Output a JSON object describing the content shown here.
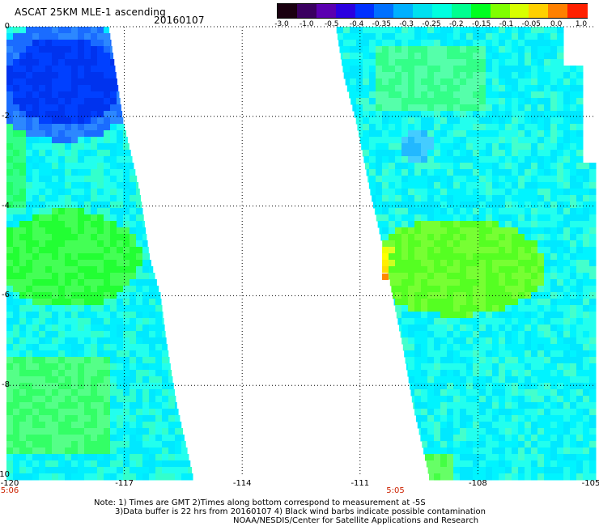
{
  "header": {
    "title": "ASCAT 25KM MLE-1 ascending",
    "date": "20160107"
  },
  "colorbar": {
    "colors": [
      "#1a0010",
      "#3a0060",
      "#5a00b0",
      "#2a00e0",
      "#0030ff",
      "#0070ff",
      "#00b0ff",
      "#00e0f0",
      "#00ffe0",
      "#00ff90",
      "#00ff20",
      "#80ff00",
      "#d8ff00",
      "#ffd000",
      "#ff8000",
      "#ff2000"
    ],
    "labels": [
      "-3.0",
      "-1.0",
      "-0.5",
      "-0.4",
      "-0.35",
      "-0.3",
      "-0.25",
      "-0.2",
      "-0.15",
      "-0.1",
      "-0.05",
      "0.0",
      "1.0"
    ]
  },
  "map": {
    "lon_range": [
      -120,
      -105
    ],
    "lat_range": [
      0,
      -10
    ],
    "y_ticks": [
      "0",
      "-2",
      "-4",
      "-6",
      "-8",
      "-10"
    ],
    "x_ticks": [
      "-120",
      "-117",
      "-114",
      "-111",
      "-108",
      "-105"
    ],
    "times": [
      {
        "label": "5:06",
        "lon": -120
      },
      {
        "label": "5:05",
        "lon": -110.1
      }
    ]
  },
  "notes": {
    "line1": "Note: 1) Times are GMT 2)Times along bottom correspond to measurement at -5S",
    "line2": "3)Data buffer is 22 hrs from 20160107 4) Black wind barbs indicate possible contamination",
    "line3": "NOAA/NESDIS/Center for Satellite Applications and Research"
  }
}
